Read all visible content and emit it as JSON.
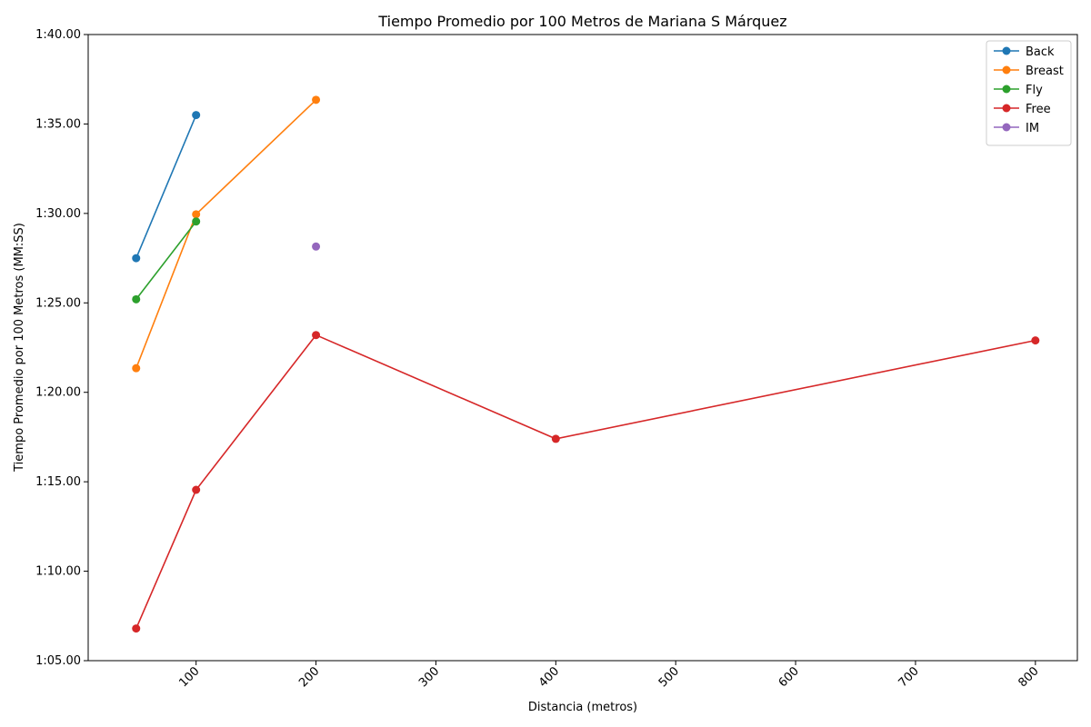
{
  "chart_data": {
    "type": "line",
    "title": "Tiempo Promedio por 100 Metros de Mariana S Márquez",
    "xlabel": "Distancia (metros)",
    "ylabel": "Tiempo Promedio por 100 Metros (MM:SS)",
    "xlim": [
      10,
      835
    ],
    "ylim": [
      65,
      100
    ],
    "x_ticks": [
      100,
      200,
      300,
      400,
      500,
      600,
      700,
      800
    ],
    "x_tick_labels": [
      "100",
      "200",
      "300",
      "400",
      "500",
      "600",
      "700",
      "800"
    ],
    "y_ticks": [
      65,
      70,
      75,
      80,
      85,
      90,
      95,
      100
    ],
    "y_tick_labels": [
      "1:05.00",
      "1:10.00",
      "1:15.00",
      "1:20.00",
      "1:25.00",
      "1:30.00",
      "1:35.00",
      "1:40.00"
    ],
    "grid": false,
    "legend_position": "top-right",
    "series": [
      {
        "name": "Back",
        "color": "#1f77b4",
        "x": [
          50,
          100
        ],
        "y": [
          87.5,
          95.5
        ]
      },
      {
        "name": "Breast",
        "color": "#ff7f0e",
        "x": [
          50,
          100,
          200
        ],
        "y": [
          81.35,
          89.95,
          96.35
        ]
      },
      {
        "name": "Fly",
        "color": "#2ca02c",
        "x": [
          50,
          100
        ],
        "y": [
          85.2,
          89.55
        ]
      },
      {
        "name": "Free",
        "color": "#d62728",
        "x": [
          50,
          100,
          200,
          400,
          800
        ],
        "y": [
          66.8,
          74.55,
          83.2,
          77.4,
          82.9
        ]
      },
      {
        "name": "IM",
        "color": "#9467bd",
        "x": [
          200
        ],
        "y": [
          88.15
        ]
      }
    ]
  }
}
